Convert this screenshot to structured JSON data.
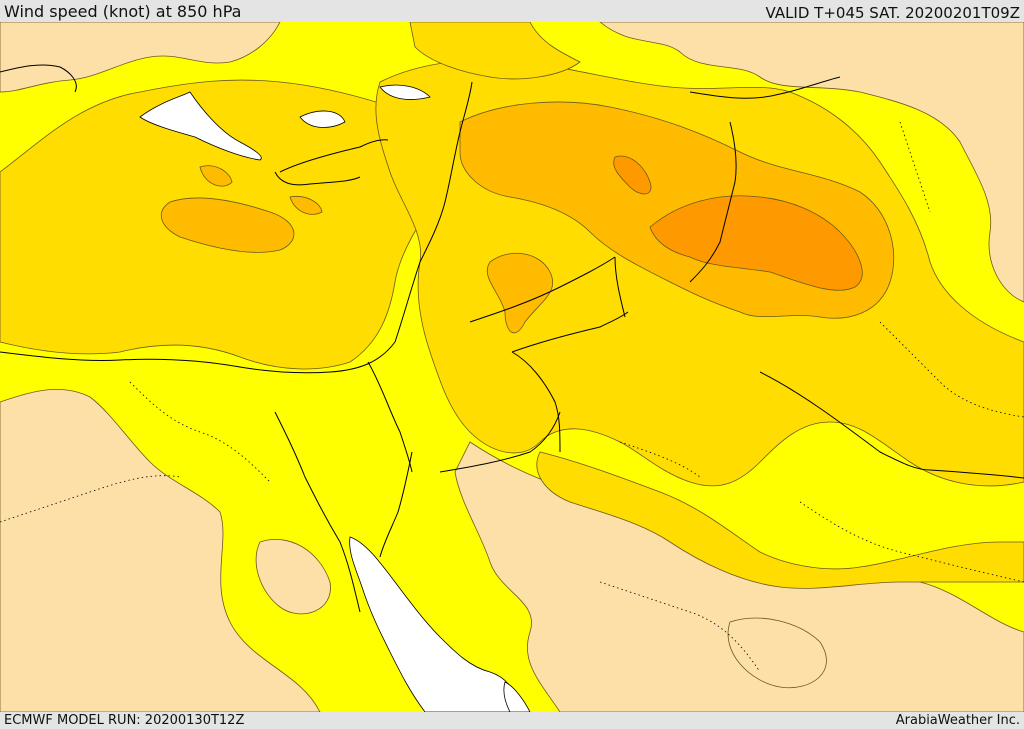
{
  "header": {
    "title": "Wind speed (knot) at 850 hPa",
    "valid": "VALID T+045 SAT. 20200201T09Z"
  },
  "footer": {
    "model_run": "ECMWF MODEL RUN: 20200130T12Z",
    "credit": "ArabiaWeather Inc."
  },
  "colors": {
    "band_lowest": "#fddfa8",
    "band_low": "#ffff00",
    "band_mid": "#ffdd00",
    "band_high": "#ffbb00",
    "band_highest": "#ff9900",
    "sea_no_data": "#ffffff",
    "contour_line": "#6b5a1e",
    "border_line": "#000000"
  }
}
